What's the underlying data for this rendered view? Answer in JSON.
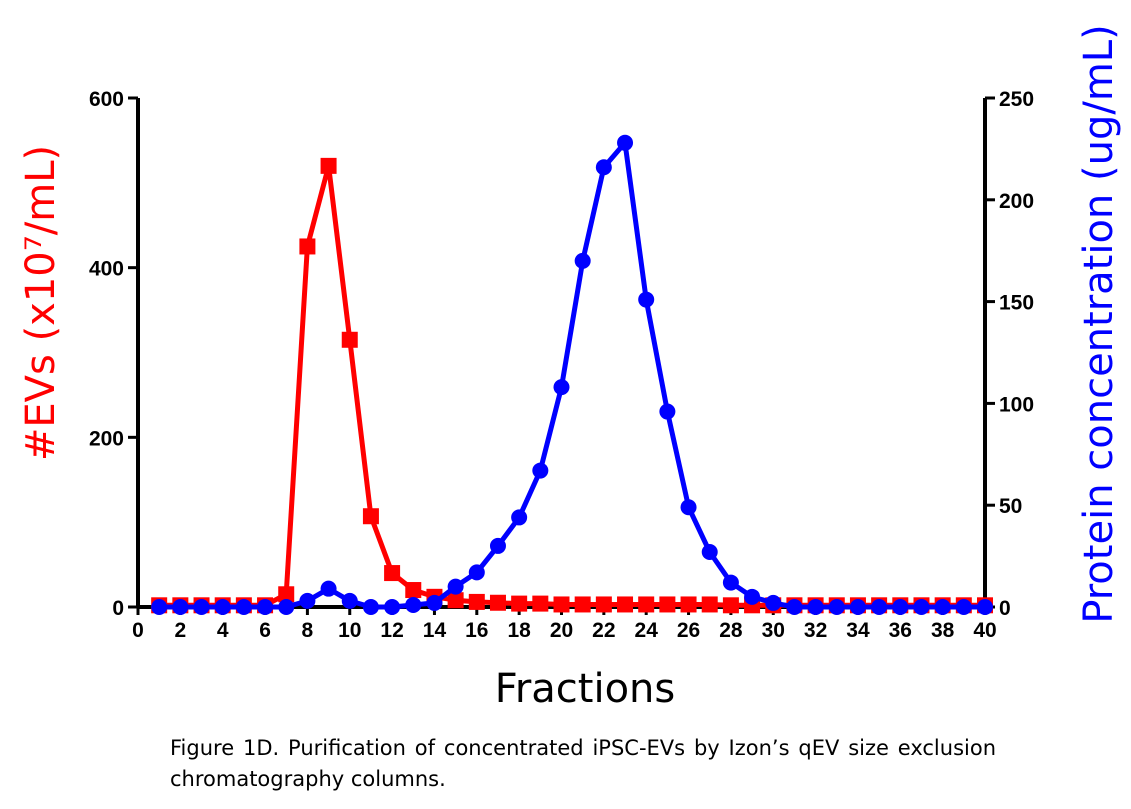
{
  "chart_data": {
    "type": "line",
    "xlabel": "Fractions",
    "ylabel_left": "#EVs (x10⁷/mL)",
    "ylabel_right": "Protein concentration (ug/mL)",
    "x_ticks": [
      "0",
      "2",
      "4",
      "6",
      "8",
      "10",
      "12",
      "14",
      "16",
      "18",
      "20",
      "22",
      "24",
      "26",
      "28",
      "30",
      "32",
      "34",
      "36",
      "38",
      "40"
    ],
    "y_left_ticks": [
      "0",
      "200",
      "400",
      "600"
    ],
    "y_right_ticks": [
      "0",
      "50",
      "100",
      "150",
      "200",
      "250"
    ],
    "xlim": [
      0,
      40
    ],
    "ylim_left": [
      0,
      600
    ],
    "ylim_right": [
      0,
      250
    ],
    "grid": false,
    "legend": "none",
    "x": [
      1,
      2,
      3,
      4,
      5,
      6,
      7,
      8,
      9,
      10,
      11,
      12,
      13,
      14,
      15,
      16,
      17,
      18,
      19,
      20,
      21,
      22,
      23,
      24,
      25,
      26,
      27,
      28,
      29,
      30,
      31,
      32,
      33,
      34,
      35,
      36,
      37,
      38,
      39,
      40
    ],
    "series": [
      {
        "axis": "left",
        "color": "#ff0000",
        "marker": "square",
        "values": [
          2,
          2,
          2,
          2,
          2,
          2,
          15,
          425,
          520,
          315,
          107,
          40,
          20,
          12,
          8,
          6,
          5,
          4,
          4,
          3,
          3,
          3,
          3,
          3,
          3,
          3,
          3,
          2,
          2,
          2,
          2,
          2,
          2,
          2,
          2,
          2,
          2,
          2,
          2,
          2
        ]
      },
      {
        "axis": "right",
        "color": "#0000ff",
        "marker": "circle",
        "values": [
          0,
          0,
          0,
          0,
          0,
          0,
          0,
          3,
          9,
          3,
          0,
          0,
          1,
          2,
          10,
          17,
          30,
          44,
          67,
          108,
          170,
          216,
          228,
          151,
          96,
          49,
          27,
          12,
          5,
          2,
          0,
          0,
          0,
          0,
          0,
          0,
          0,
          0,
          0,
          0
        ]
      }
    ]
  },
  "caption": "Figure 1D. Purification of concentrated iPSC-EVs by Izon’s qEV size exclusion chromatography columns.",
  "colors": {
    "left_axis_label": "#ff0000",
    "right_axis_label": "#0000ff",
    "axes": "#000000"
  }
}
